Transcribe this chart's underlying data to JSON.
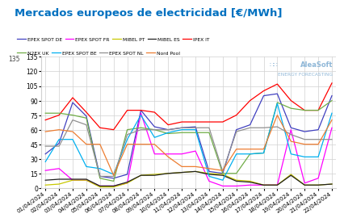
{
  "title": "Mercados europeos de electricidad [€/MWh]",
  "title_color": "#0070c0",
  "background_color": "#ffffff",
  "dates": [
    "01/04/2024",
    "02/04/2024",
    "03/04/2024",
    "04/04/2024",
    "05/04/2024",
    "06/04/2024",
    "07/04/2024",
    "08/04/2024",
    "09/04/2024",
    "10/04/2024",
    "11/04/2024",
    "12/04/2024",
    "13/04/2024",
    "14/04/2024",
    "15/04/2024",
    "16/04/2024",
    "17/04/2024",
    "18/04/2024",
    "19/04/2024",
    "20/04/2024",
    "21/04/2024",
    "22/04/2024"
  ],
  "series": {
    "EPEX SPOT DE": {
      "color": "#4040c0",
      "values": [
        35,
        46,
        88,
        74,
        12,
        10,
        14,
        80,
        63,
        60,
        62,
        63,
        17,
        15,
        60,
        65,
        95,
        97,
        62,
        58,
        60,
        95
      ]
    },
    "EPEX SPOT FR": {
      "color": "#ff00ff",
      "values": [
        18,
        20,
        8,
        8,
        2,
        2,
        5,
        77,
        35,
        35,
        35,
        38,
        7,
        2,
        2,
        3,
        3,
        3,
        60,
        5,
        10,
        62
      ]
    },
    "MIBEL PT": {
      "color": "#c8c800",
      "values": [
        3,
        4,
        8,
        8,
        1,
        1,
        5,
        13,
        14,
        15,
        16,
        17,
        15,
        14,
        8,
        7,
        3,
        3,
        14,
        3,
        3,
        4
      ]
    },
    "MIBEL ES": {
      "color": "#202020",
      "values": [
        8,
        9,
        9,
        9,
        2,
        2,
        6,
        13,
        13,
        15,
        16,
        17,
        14,
        13,
        7,
        6,
        3,
        3,
        13,
        3,
        3,
        4
      ]
    },
    "IPEX IT": {
      "color": "#ff0000",
      "values": [
        70,
        75,
        93,
        78,
        62,
        60,
        80,
        80,
        78,
        65,
        68,
        68,
        68,
        68,
        75,
        90,
        100,
        107,
        90,
        80,
        80,
        108
      ]
    },
    "N2EX UK": {
      "color": "#70ad47",
      "values": [
        77,
        77,
        75,
        72,
        10,
        7,
        60,
        62,
        60,
        56,
        57,
        57,
        57,
        15,
        15,
        35,
        36,
        88,
        82,
        80,
        80,
        90
      ]
    },
    "EPEX SPOT BE": {
      "color": "#00b0f0",
      "values": [
        27,
        50,
        50,
        22,
        20,
        14,
        50,
        75,
        52,
        57,
        60,
        60,
        12,
        8,
        35,
        35,
        36,
        87,
        35,
        32,
        32,
        77
      ]
    },
    "EPEX SPOT NL": {
      "color": "#909090",
      "values": [
        43,
        43,
        70,
        65,
        12,
        12,
        55,
        60,
        60,
        60,
        62,
        62,
        62,
        17,
        58,
        62,
        62,
        63,
        55,
        50,
        50,
        50
      ]
    },
    "Nord Pool": {
      "color": "#ed7d31",
      "values": [
        58,
        60,
        58,
        45,
        45,
        13,
        45,
        45,
        45,
        32,
        22,
        22,
        20,
        18,
        40,
        40,
        40,
        75,
        48,
        45,
        45,
        70
      ]
    }
  },
  "ylim": [
    0,
    135
  ],
  "yticks": [
    0,
    15,
    30,
    45,
    60,
    75,
    90,
    105,
    120,
    135
  ],
  "grid_color": "#d0d0d0",
  "watermark_line1": "AleaSoft",
  "watermark_line2": "ENERGY FORECASTING",
  "watermark_color": "#90b8d8",
  "legend_row1": [
    "EPEX SPOT DE",
    "EPEX SPOT FR",
    "MIBEL PT",
    "MIBEL ES",
    "IPEX IT"
  ],
  "legend_row2": [
    "N2EX UK",
    "EPEX SPOT BE",
    "EPEX SPOT NL",
    "Nord Pool"
  ]
}
